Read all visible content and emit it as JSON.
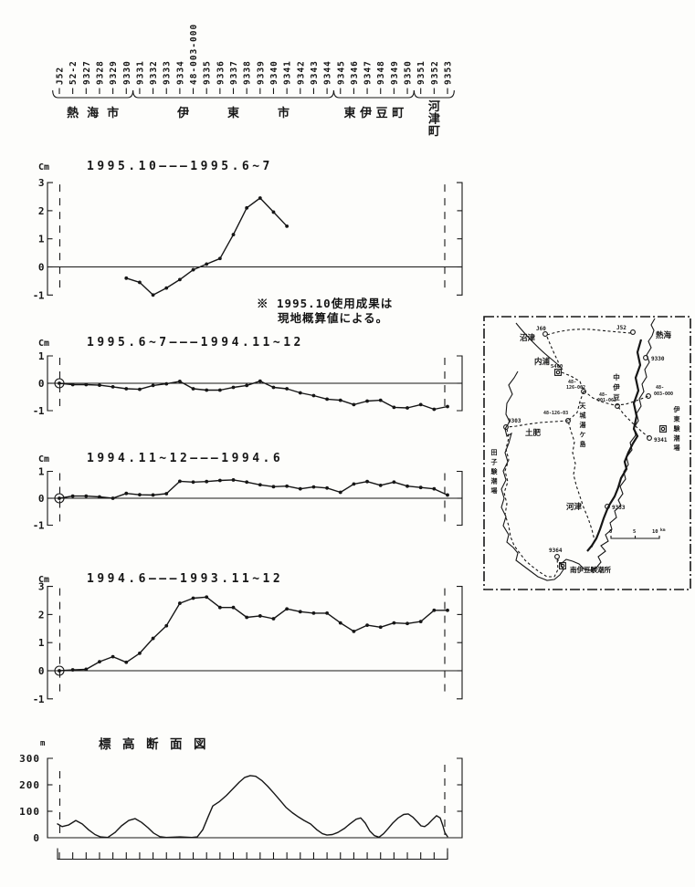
{
  "figure": {
    "benchmarks": [
      "J52",
      "52-2",
      "9327",
      "9328",
      "9329",
      "9330",
      "9331",
      "9332",
      "9333",
      "9334",
      "48-003-000",
      "9335",
      "9336",
      "9337",
      "9338",
      "9339",
      "9340",
      "9341",
      "9342",
      "9343",
      "9344",
      "9345",
      "9346",
      "9347",
      "9348",
      "9349",
      "9350",
      "9351",
      "9352",
      "9353"
    ],
    "municipalities": [
      {
        "label": "熱海市",
        "from": 0,
        "to": 5,
        "vertical": false
      },
      {
        "label": "伊東市",
        "from": 6,
        "to": 20,
        "vertical": false
      },
      {
        "label": "東伊豆町",
        "from": 21,
        "to": 26,
        "vertical": false
      },
      {
        "label": "河津町",
        "from": 27,
        "to": 29,
        "vertical": true
      }
    ],
    "note_lines": [
      "※ 1995.10使用成果は",
      "現地概算値による。"
    ]
  },
  "chart_data": [
    {
      "type": "line",
      "unit": "Cm",
      "title": {
        "period_a": "1995.10",
        "period_b": "1995.6~7"
      },
      "ylim": [
        -1,
        3
      ],
      "yticks": [
        3,
        2,
        1,
        0,
        -1
      ],
      "datum_circle": false,
      "categories_key": "figure.benchmarks",
      "values": [
        null,
        null,
        null,
        null,
        null,
        -0.4,
        -0.55,
        -1.0,
        -0.75,
        -0.45,
        -0.1,
        0.1,
        0.3,
        1.15,
        2.1,
        2.45,
        1.95,
        1.45,
        null,
        null,
        null,
        null,
        null,
        null,
        null,
        null,
        null,
        null,
        null,
        null
      ]
    },
    {
      "type": "line",
      "unit": "Cm",
      "title": {
        "period_a": "1995.6~7",
        "period_b": "1994.11~12"
      },
      "ylim": [
        -1,
        1
      ],
      "yticks": [
        1,
        0,
        -1
      ],
      "datum_circle": true,
      "categories_key": "figure.benchmarks",
      "values": [
        0,
        -0.05,
        -0.05,
        -0.07,
        -0.13,
        -0.2,
        -0.22,
        -0.08,
        -0.02,
        0.07,
        -0.2,
        -0.25,
        -0.25,
        -0.15,
        -0.08,
        0.08,
        -0.15,
        -0.2,
        -0.35,
        -0.45,
        -0.58,
        -0.62,
        -0.78,
        -0.65,
        -0.62,
        -0.88,
        -0.9,
        -0.78,
        -0.95,
        -0.85
      ]
    },
    {
      "type": "line",
      "unit": "Cm",
      "title": {
        "period_a": "1994.11~12",
        "period_b": "1994.6"
      },
      "ylim": [
        -1,
        1
      ],
      "yticks": [
        1,
        0,
        -1
      ],
      "datum_circle": true,
      "categories_key": "figure.benchmarks",
      "values": [
        0,
        0.08,
        0.08,
        0.05,
        0,
        0.18,
        0.13,
        0.12,
        0.17,
        0.63,
        0.6,
        0.62,
        0.66,
        0.68,
        0.6,
        0.5,
        0.43,
        0.45,
        0.35,
        0.42,
        0.38,
        0.22,
        0.53,
        0.62,
        0.48,
        0.6,
        0.45,
        0.4,
        0.35,
        0.12
      ]
    },
    {
      "type": "line",
      "unit": "Cm",
      "title": {
        "period_a": "1994.6",
        "period_b": "1993.11~12"
      },
      "ylim": [
        -1,
        3
      ],
      "yticks": [
        3,
        2,
        1,
        0,
        -1
      ],
      "datum_circle": true,
      "categories_key": "figure.benchmarks",
      "values": [
        0,
        0.03,
        0.05,
        0.32,
        0.5,
        0.3,
        0.62,
        1.15,
        1.6,
        2.4,
        2.58,
        2.62,
        2.25,
        2.25,
        1.9,
        1.95,
        1.85,
        2.2,
        2.1,
        2.05,
        2.05,
        1.7,
        1.4,
        1.62,
        1.55,
        1.7,
        1.68,
        1.75,
        2.15,
        2.15
      ]
    },
    {
      "type": "area",
      "unit": "m",
      "title": "標高断面図",
      "ylim": [
        0,
        300
      ],
      "yticks": [
        300,
        200,
        100,
        0
      ],
      "profile_x_elev": [
        [
          63,
          52
        ],
        [
          68,
          42
        ],
        [
          75,
          48
        ],
        [
          83,
          65
        ],
        [
          90,
          52
        ],
        [
          97,
          30
        ],
        [
          104,
          12
        ],
        [
          110,
          3
        ],
        [
          118,
          1
        ],
        [
          126,
          20
        ],
        [
          133,
          45
        ],
        [
          141,
          65
        ],
        [
          148,
          72
        ],
        [
          155,
          58
        ],
        [
          162,
          38
        ],
        [
          168,
          18
        ],
        [
          175,
          4
        ],
        [
          182,
          1
        ],
        [
          197,
          3
        ],
        [
          210,
          1
        ],
        [
          216,
          3
        ],
        [
          222,
          30
        ],
        [
          228,
          80
        ],
        [
          233,
          120
        ],
        [
          240,
          136
        ],
        [
          248,
          160
        ],
        [
          255,
          185
        ],
        [
          262,
          210
        ],
        [
          268,
          228
        ],
        [
          274,
          235
        ],
        [
          280,
          232
        ],
        [
          287,
          215
        ],
        [
          293,
          195
        ],
        [
          300,
          168
        ],
        [
          307,
          140
        ],
        [
          313,
          115
        ],
        [
          320,
          95
        ],
        [
          327,
          78
        ],
        [
          333,
          65
        ],
        [
          340,
          52
        ],
        [
          347,
          30
        ],
        [
          353,
          15
        ],
        [
          358,
          10
        ],
        [
          364,
          12
        ],
        [
          370,
          20
        ],
        [
          377,
          35
        ],
        [
          383,
          52
        ],
        [
          390,
          70
        ],
        [
          395,
          75
        ],
        [
          400,
          55
        ],
        [
          405,
          25
        ],
        [
          410,
          8
        ],
        [
          415,
          2
        ],
        [
          420,
          15
        ],
        [
          425,
          35
        ],
        [
          430,
          55
        ],
        [
          436,
          75
        ],
        [
          442,
          88
        ],
        [
          447,
          90
        ],
        [
          452,
          78
        ],
        [
          457,
          60
        ],
        [
          461,
          45
        ],
        [
          465,
          42
        ],
        [
          469,
          52
        ],
        [
          474,
          70
        ],
        [
          478,
          83
        ],
        [
          482,
          75
        ],
        [
          485,
          45
        ],
        [
          487,
          20
        ],
        [
          490,
          4
        ]
      ]
    }
  ],
  "map": {
    "labels": {
      "numazu": "沼津",
      "j60": "J60",
      "atami": "熱海",
      "j52": "J52",
      "bm9330": "9330",
      "uchiura": "内浦",
      "bm5400": "5400",
      "nakaizu": "中伊豆",
      "route_a": "48-126-062",
      "route_b": "48-001-062",
      "route_c": "48-003-000",
      "route_d": "48-126-03",
      "amagi": "天城湯ケ島",
      "toi": "土肥",
      "bm9303": "9303",
      "tago": "田子験潮場",
      "ito": "伊東験潮場",
      "bm9341": "9341",
      "kawazu": "河津",
      "bm9353": "9353",
      "bm9364": "9364",
      "minamiizu": "南伊豆験潮所"
    },
    "scale": {
      "zero": "0",
      "five": "5",
      "ten": "10",
      "unit": "km"
    }
  }
}
